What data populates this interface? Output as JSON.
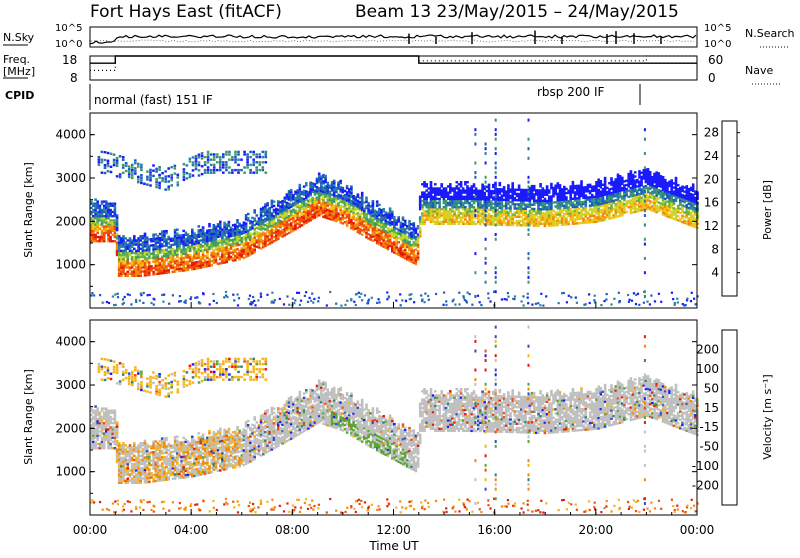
{
  "header": {
    "station": "Fort Hays East (fitACF)",
    "beam_date": "Beam 13 23/May/2015 – 24/May/2015"
  },
  "top_panels": {
    "nsky_label": "N.Sky",
    "nsky_tick_hi": "10^5",
    "nsky_tick_lo": "10^0",
    "nsearch_label": "N.Search",
    "nsearch_tick_hi": "10^5",
    "nsearch_tick_lo": "10^0",
    "freq_label": "Freq.",
    "freq_unit": "[MHz]",
    "freq_tick_hi": "18",
    "freq_tick_lo": "8",
    "nave_label": "Nave",
    "nave_tick_hi": "60",
    "nave_tick_lo": "0",
    "cpid_label": "CPID",
    "cpid_mode_1": "normal (fast) 151 IF",
    "cpid_mode_2": "rbsp 200 IF"
  },
  "colors": {
    "power_scale": [
      "#1a1aff",
      "#1a5fbf",
      "#2f7fa0",
      "#3f9a66",
      "#66b34a",
      "#c9d62e",
      "#f7c316",
      "#f28a0e",
      "#f04d0c",
      "#e6190a"
    ],
    "velocity_scale": [
      "#e6190a",
      "#f04d0c",
      "#f28a0e",
      "#f5b515",
      "#c0c0c0",
      "#c0c0c0",
      "#5aa632",
      "#2f7f7f",
      "#2f4fbf",
      "#1a1aff"
    ]
  },
  "chart_data": [
    {
      "type": "heatmap",
      "name": "power",
      "xlabel": "Time UT",
      "ylabel": "Slant Range [km]",
      "x_ticks": [
        "00:00",
        "04:00",
        "08:00",
        "12:00",
        "16:00",
        "20:00",
        "00:00"
      ],
      "x_range_hours": [
        0,
        24
      ],
      "y_ticks": [
        "1000",
        "2000",
        "3000",
        "4000"
      ],
      "ylim": [
        0,
        4500
      ],
      "colorbar_label": "Power [dB]",
      "colorbar_ticks": [
        "4",
        "8",
        "12",
        "16",
        "20",
        "24",
        "28"
      ],
      "colorbar_range": [
        0,
        30
      ],
      "scatter_band_center_km": [
        [
          0,
          1950
        ],
        [
          1,
          1950
        ],
        [
          1.05,
          1150
        ],
        [
          2,
          1150
        ],
        [
          4,
          1300
        ],
        [
          6,
          1550
        ],
        [
          8,
          2200
        ],
        [
          9,
          2550
        ],
        [
          10,
          2350
        ],
        [
          11,
          2000
        ],
        [
          12.9,
          1400
        ],
        [
          13.05,
          2350
        ],
        [
          15,
          2350
        ],
        [
          18,
          2300
        ],
        [
          20,
          2400
        ],
        [
          22,
          2700
        ],
        [
          24,
          2250
        ]
      ],
      "secondary_band_center_km": [
        [
          0.5,
          3400
        ],
        [
          3,
          3000
        ],
        [
          4.5,
          3400
        ],
        [
          6.5,
          3400
        ]
      ]
    },
    {
      "type": "heatmap",
      "name": "velocity",
      "xlabel": "Time UT",
      "ylabel": "Slant Range [km]",
      "x_ticks": [
        "00:00",
        "04:00",
        "08:00",
        "12:00",
        "16:00",
        "20:00",
        "00:00"
      ],
      "x_range_hours": [
        0,
        24
      ],
      "y_ticks": [
        "1000",
        "2000",
        "3000",
        "4000"
      ],
      "ylim": [
        0,
        4500
      ],
      "colorbar_label": "Velocity [m s⁻¹]",
      "colorbar_ticks": [
        "200",
        "100",
        "50",
        "15",
        "-15",
        "-50",
        "-100",
        "-200"
      ],
      "colorbar_range": [
        -250,
        250
      ]
    },
    {
      "type": "line",
      "name": "nsky_nsearch",
      "ylabel": "N.Sky",
      "scale": "log"
    },
    {
      "type": "line",
      "name": "freq_nave",
      "ylabel": "Freq. [MHz]",
      "freq_series": [
        [
          0,
          15
        ],
        [
          1,
          15
        ],
        [
          1,
          18
        ],
        [
          13,
          18
        ],
        [
          13,
          15
        ],
        [
          24,
          15
        ]
      ],
      "nave_series": [
        [
          0,
          12
        ],
        [
          1,
          12
        ],
        [
          1,
          18
        ],
        [
          13,
          18
        ],
        [
          13,
          16
        ],
        [
          22,
          16
        ],
        [
          22,
          18
        ],
        [
          24,
          18
        ]
      ],
      "ylim": [
        8,
        18
      ]
    }
  ]
}
